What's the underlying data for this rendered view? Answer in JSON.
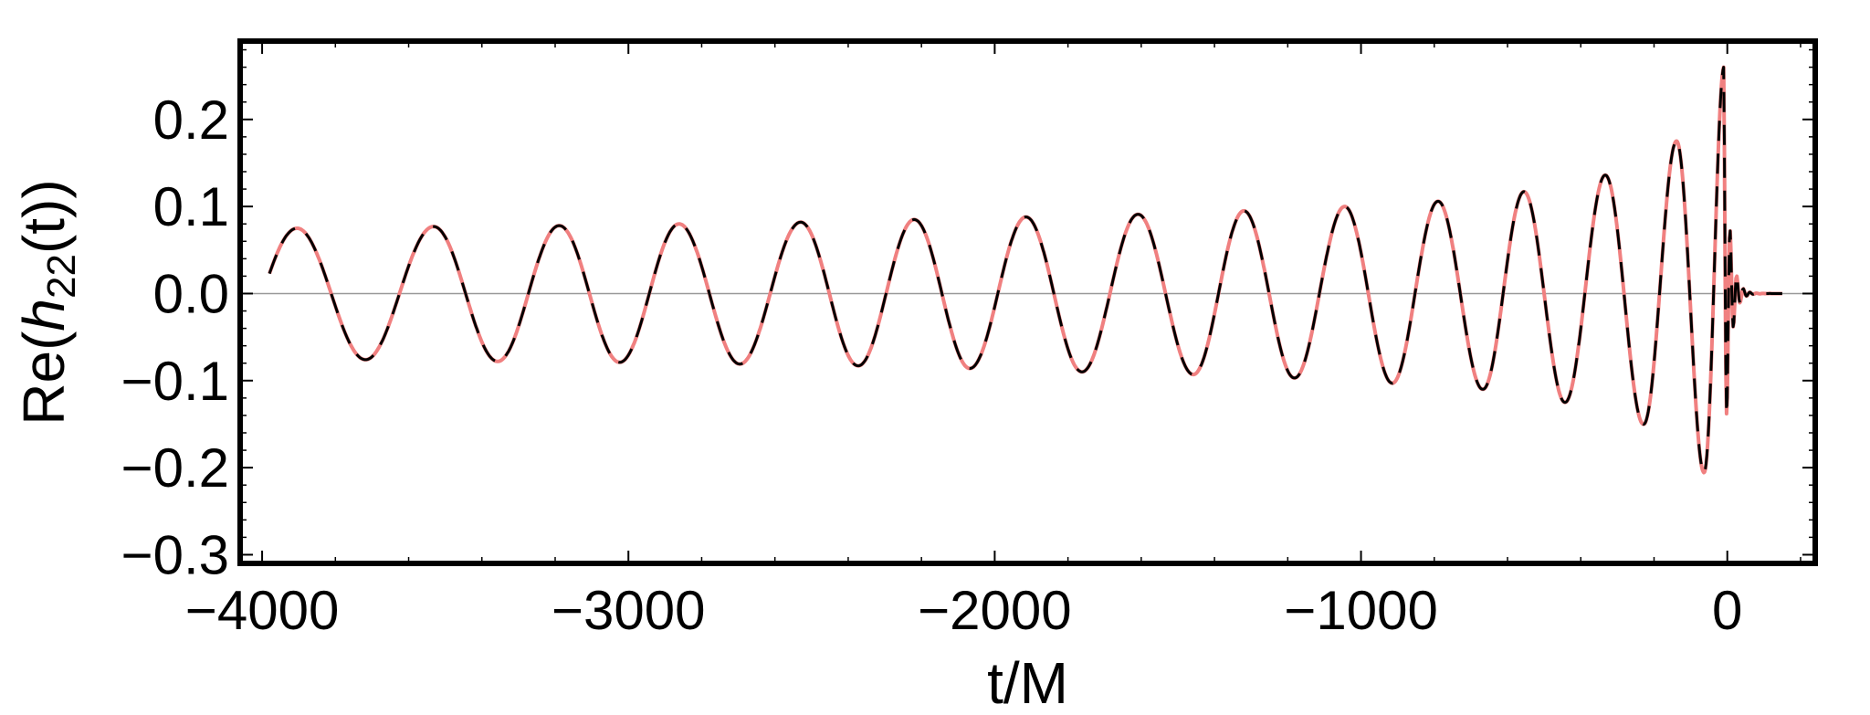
{
  "chart_data": {
    "type": "line",
    "title": "",
    "xlabel": "t/M",
    "ylabel": {
      "prefix": "Re(",
      "var": "h",
      "sub": "22",
      "suffix": "(t))"
    },
    "xlim": [
      -4060,
      240
    ],
    "ylim": [
      -0.31,
      0.29
    ],
    "x_ticks": [
      {
        "value": -4000,
        "label": "−4000"
      },
      {
        "value": -3000,
        "label": "−3000"
      },
      {
        "value": -2000,
        "label": "−2000"
      },
      {
        "value": -1000,
        "label": "−1000"
      },
      {
        "value": 0,
        "label": "0"
      }
    ],
    "y_ticks": [
      {
        "value": 0.2,
        "label": "0.2"
      },
      {
        "value": 0.1,
        "label": "0.1"
      },
      {
        "value": 0.0,
        "label": "0.0"
      },
      {
        "value": -0.1,
        "label": "−0.1"
      },
      {
        "value": -0.2,
        "label": "−0.2"
      },
      {
        "value": -0.3,
        "label": "−0.3"
      }
    ],
    "zero_line": true,
    "grid": false,
    "series": [
      {
        "style": "solid",
        "color": "#f08080",
        "waveform": {
          "t_start": -3980,
          "t_merger": 0,
          "t_end": 150,
          "peak_times": [
            -3905,
            -3718,
            -3532,
            -3357,
            -3189,
            -3024,
            -2862,
            -2696,
            -2530,
            -2373,
            -2220,
            -2068,
            -1915,
            -1762,
            -1609,
            -1458,
            -1320,
            -1182,
            -1045,
            -915,
            -790,
            -668,
            -556,
            -444,
            -334,
            -230,
            -140,
            -65,
            -10
          ],
          "peak_values": [
            0.075,
            0.076,
            0.077,
            0.078,
            0.078,
            0.079,
            0.08,
            0.081,
            0.082,
            0.083,
            0.085,
            0.086,
            0.088,
            0.09,
            0.091,
            0.093,
            0.095,
            0.097,
            0.1,
            0.103,
            0.106,
            0.11,
            0.117,
            0.125,
            0.136,
            0.15,
            0.175,
            0.205,
            0.26
          ],
          "ringdown_tau": 14,
          "ringdown_period": 18
        }
      },
      {
        "style": "dashed",
        "color": "#000000",
        "waveform": {
          "t_start": -3980,
          "t_merger": 0,
          "t_end": 150,
          "peak_times": [
            -3905,
            -3718,
            -3532,
            -3357,
            -3189,
            -3024,
            -2862,
            -2696,
            -2530,
            -2373,
            -2220,
            -2068,
            -1915,
            -1762,
            -1609,
            -1458,
            -1320,
            -1182,
            -1045,
            -915,
            -790,
            -668,
            -556,
            -444,
            -334,
            -230,
            -140,
            -65,
            -10
          ],
          "peak_values": [
            0.075,
            0.076,
            0.077,
            0.078,
            0.078,
            0.079,
            0.08,
            0.081,
            0.082,
            0.083,
            0.085,
            0.086,
            0.088,
            0.09,
            0.091,
            0.093,
            0.095,
            0.097,
            0.1,
            0.103,
            0.106,
            0.11,
            0.117,
            0.125,
            0.136,
            0.15,
            0.175,
            0.205,
            0.26
          ],
          "ringdown_tau": 14,
          "ringdown_period": 18
        }
      }
    ]
  }
}
